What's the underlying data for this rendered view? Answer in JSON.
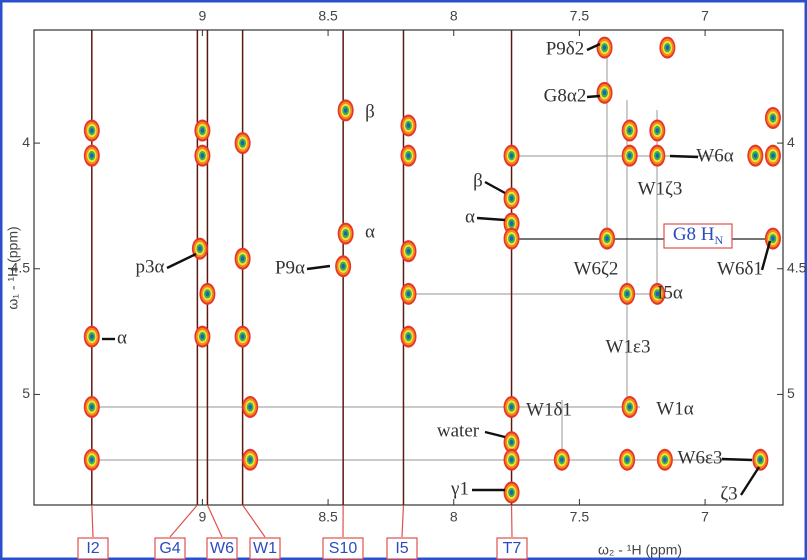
{
  "chart_data": {
    "type": "nmr2d",
    "x_label": "ω₂ - ¹H (ppm)",
    "y_label": "ω₁ - ¹H (ppm)",
    "xlim": [
      9.67,
      6.69
    ],
    "ylim": [
      3.55,
      5.44
    ],
    "xticks": [
      9.0,
      8.5,
      8.0,
      7.5,
      7.0
    ],
    "yticks": [
      4.0,
      4.5,
      5.0
    ],
    "residues": [
      {
        "label": "I2",
        "x": 9.44
      },
      {
        "label": "G4",
        "x": 9.02
      },
      {
        "label": "W6",
        "x": 8.98
      },
      {
        "label": "W1",
        "x": 8.84
      },
      {
        "label": "S10",
        "x": 8.44
      },
      {
        "label": "I5",
        "x": 8.2
      },
      {
        "label": "T7",
        "x": 7.77
      }
    ],
    "peaks": {
      "x": [
        9.44,
        9.44,
        9.44,
        9.44,
        9.44,
        9.0,
        9.0,
        9.01,
        8.98,
        9.0,
        8.84,
        8.84,
        8.84,
        8.81,
        8.81,
        8.43,
        8.43,
        8.44,
        8.18,
        8.18,
        8.18,
        8.18,
        8.18,
        7.77,
        7.77,
        7.77,
        7.77,
        7.77,
        7.77,
        7.77,
        7.77,
        7.4,
        7.4,
        7.3,
        7.3,
        7.19,
        7.19,
        7.39,
        7.31,
        7.19,
        7.3,
        7.57,
        7.31,
        7.16,
        6.78,
        6.73,
        6.73,
        6.73,
        6.8,
        7.15
      ],
      "y": [
        3.95,
        4.05,
        4.77,
        5.05,
        5.26,
        3.95,
        4.05,
        4.42,
        4.6,
        4.77,
        4.0,
        4.46,
        4.77,
        5.05,
        5.26,
        3.87,
        4.36,
        4.49,
        3.93,
        4.05,
        4.43,
        4.6,
        4.77,
        4.05,
        4.22,
        4.32,
        4.38,
        5.05,
        5.19,
        5.26,
        5.39,
        3.62,
        3.8,
        3.95,
        4.05,
        4.05,
        3.95,
        4.38,
        4.6,
        4.6,
        5.05,
        5.26,
        5.26,
        5.26,
        5.26,
        4.38,
        3.9,
        4.05,
        4.05,
        3.62
      ]
    },
    "annotations": [
      {
        "text": "P9δ2"
      },
      {
        "text": "G8α2"
      },
      {
        "text": "W6α"
      },
      {
        "text": "W1ζ3"
      },
      {
        "text": "β"
      },
      {
        "text": "α"
      },
      {
        "text": "G8 H",
        "sub": "N"
      },
      {
        "text": "W6ζ2"
      },
      {
        "text": "W6δ1"
      },
      {
        "text": "I5α"
      },
      {
        "text": "W1ε3"
      },
      {
        "text": "p3α"
      },
      {
        "text": "P9α"
      },
      {
        "text": "β"
      },
      {
        "text": "α"
      },
      {
        "text": "α"
      },
      {
        "text": "W1δ1"
      },
      {
        "text": "W1α"
      },
      {
        "text": "water"
      },
      {
        "text": "W6ε3"
      },
      {
        "text": "γ1"
      },
      {
        "text": "ζ3"
      }
    ]
  }
}
